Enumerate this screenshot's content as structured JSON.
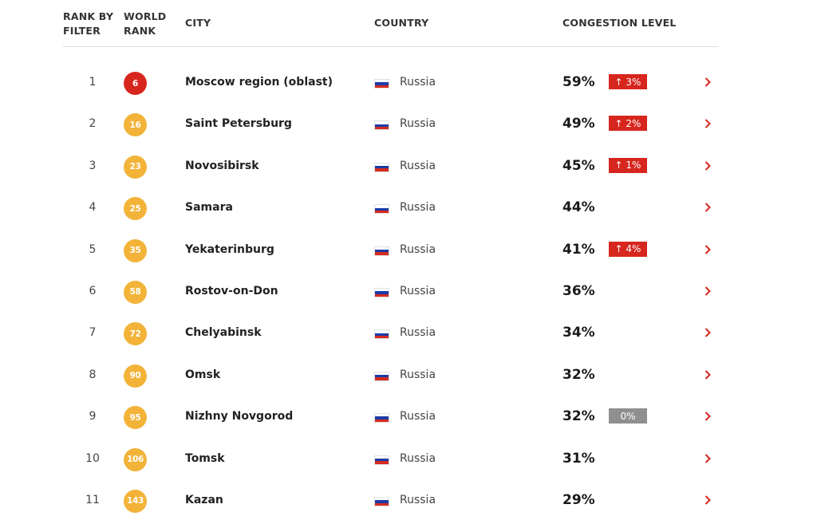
{
  "header": {
    "rank_by_filter": "RANK BY FILTER",
    "world_rank": "WORLD RANK",
    "city": "CITY",
    "country": "COUNTRY",
    "congestion": "CONGESTION LEVEL"
  },
  "colors": {
    "badge_top": "#d7261e",
    "badge_other": "#f2b338",
    "increase": "#d7261e",
    "neutral": "#8f8f8f"
  },
  "icons": {
    "flag": "russia-flag-icon",
    "chevron": "chevron-right-icon"
  },
  "rows": [
    {
      "rank": "1",
      "world_rank": "6",
      "city": "Moscow region (oblast)",
      "country": "Russia",
      "congestion": "59%",
      "change": "↑ 3%",
      "change_type": "up"
    },
    {
      "rank": "2",
      "world_rank": "16",
      "city": "Saint Petersburg",
      "country": "Russia",
      "congestion": "49%",
      "change": "↑ 2%",
      "change_type": "up"
    },
    {
      "rank": "3",
      "world_rank": "23",
      "city": "Novosibirsk",
      "country": "Russia",
      "congestion": "45%",
      "change": "↑ 1%",
      "change_type": "up"
    },
    {
      "rank": "4",
      "world_rank": "25",
      "city": "Samara",
      "country": "Russia",
      "congestion": "44%",
      "change": "",
      "change_type": "none"
    },
    {
      "rank": "5",
      "world_rank": "35",
      "city": "Yekaterinburg",
      "country": "Russia",
      "congestion": "41%",
      "change": "↑ 4%",
      "change_type": "up"
    },
    {
      "rank": "6",
      "world_rank": "58",
      "city": "Rostov-on-Don",
      "country": "Russia",
      "congestion": "36%",
      "change": "",
      "change_type": "none"
    },
    {
      "rank": "7",
      "world_rank": "72",
      "city": "Chelyabinsk",
      "country": "Russia",
      "congestion": "34%",
      "change": "",
      "change_type": "none"
    },
    {
      "rank": "8",
      "world_rank": "90",
      "city": "Omsk",
      "country": "Russia",
      "congestion": "32%",
      "change": "",
      "change_type": "none"
    },
    {
      "rank": "9",
      "world_rank": "95",
      "city": "Nizhny Novgorod",
      "country": "Russia",
      "congestion": "32%",
      "change": "0%",
      "change_type": "neutral"
    },
    {
      "rank": "10",
      "world_rank": "106",
      "city": "Tomsk",
      "country": "Russia",
      "congestion": "31%",
      "change": "",
      "change_type": "none"
    },
    {
      "rank": "11",
      "world_rank": "143",
      "city": "Kazan",
      "country": "Russia",
      "congestion": "29%",
      "change": "",
      "change_type": "none"
    }
  ]
}
